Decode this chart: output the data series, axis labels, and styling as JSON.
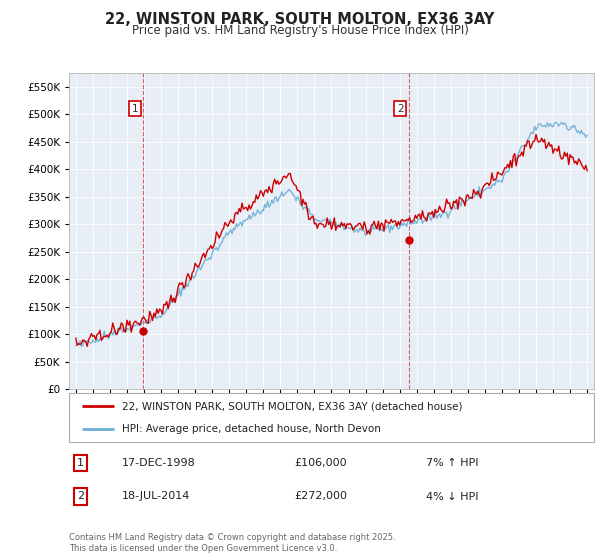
{
  "title": "22, WINSTON PARK, SOUTH MOLTON, EX36 3AY",
  "subtitle": "Price paid vs. HM Land Registry's House Price Index (HPI)",
  "legend_line1": "22, WINSTON PARK, SOUTH MOLTON, EX36 3AY (detached house)",
  "legend_line2": "HPI: Average price, detached house, North Devon",
  "annotation1_label": "1",
  "annotation1_date": "17-DEC-1998",
  "annotation1_price": "£106,000",
  "annotation1_hpi": "7% ↑ HPI",
  "annotation2_label": "2",
  "annotation2_date": "18-JUL-2014",
  "annotation2_price": "£272,000",
  "annotation2_hpi": "4% ↓ HPI",
  "footnote": "Contains HM Land Registry data © Crown copyright and database right 2025.\nThis data is licensed under the Open Government Licence v3.0.",
  "hpi_color": "#6baed6",
  "price_color": "#cc0000",
  "marker1_x": 1998.96,
  "marker1_y": 106000,
  "marker2_x": 2014.54,
  "marker2_y": 272000,
  "vline1_x": 1998.96,
  "vline2_x": 2014.54,
  "ylim": [
    0,
    575000
  ],
  "xlim_start": 1994.6,
  "xlim_end": 2025.4,
  "chart_bg": "#e8eef5",
  "fig_bg": "#ffffff"
}
